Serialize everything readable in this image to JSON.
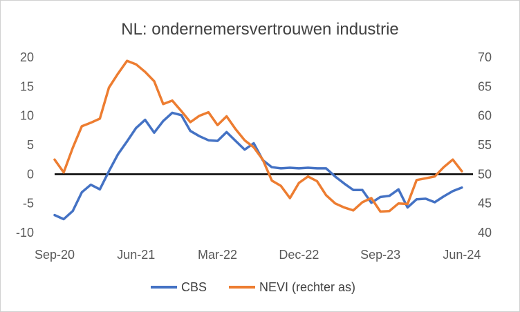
{
  "chart_data": {
    "type": "line",
    "title": "NL: ondernemersvertrouwen industrie",
    "x": [
      "Sep-20",
      "Oct-20",
      "Nov-20",
      "Dec-20",
      "Jan-21",
      "Feb-21",
      "Mar-21",
      "Apr-21",
      "May-21",
      "Jun-21",
      "Jul-21",
      "Aug-21",
      "Sep-21",
      "Oct-21",
      "Nov-21",
      "Dec-21",
      "Jan-22",
      "Feb-22",
      "Mar-22",
      "Apr-22",
      "May-22",
      "Jun-22",
      "Jul-22",
      "Aug-22",
      "Sep-22",
      "Oct-22",
      "Nov-22",
      "Dec-22",
      "Jan-23",
      "Feb-23",
      "Mar-23",
      "Apr-23",
      "May-23",
      "Jun-23",
      "Jul-23",
      "Aug-23",
      "Sep-23",
      "Oct-23",
      "Nov-23",
      "Dec-23",
      "Jan-24",
      "Feb-24",
      "Mar-24",
      "Apr-24",
      "May-24",
      "Jun-24",
      "Jul-24"
    ],
    "x_tick_labels": [
      "Sep-20",
      "Jun-21",
      "Mar-22",
      "Dec-22",
      "Sep-23",
      "Jun-24"
    ],
    "xlabel": "",
    "ylabel": "",
    "ylim": [
      -10,
      20
    ],
    "y_ticks": [
      "-10",
      "-5",
      "0",
      "5",
      "10",
      "15",
      "20"
    ],
    "y2lim": [
      40,
      70
    ],
    "y2_ticks": [
      "40",
      "45",
      "50",
      "55",
      "60",
      "65",
      "70"
    ],
    "zero_line": true,
    "legend_position": "bottom",
    "series": [
      {
        "name": "CBS",
        "axis": "left",
        "color": "#4472c4",
        "values": [
          -7,
          -7.7,
          -6.3,
          -3.1,
          -1.8,
          -2.6,
          0.5,
          3.4,
          5.6,
          7.9,
          9.3,
          7.1,
          9.1,
          10.5,
          10.1,
          7.4,
          6.5,
          5.8,
          5.7,
          7.2,
          5.7,
          4.2,
          5.3,
          2.4,
          1.2,
          1.0,
          1.1,
          1.0,
          1.1,
          1.0,
          1.0,
          -0.4,
          -1.6,
          -2.7,
          -2.7,
          -4.9,
          -3.9,
          -3.7,
          -2.6,
          -5.7,
          -4.3,
          -4.2,
          -4.8,
          -3.8,
          -2.9,
          -2.3,
          null
        ]
      },
      {
        "name": "NEVI (rechter as)",
        "axis": "right",
        "color": "#ed7d31",
        "values": [
          52.5,
          50.3,
          54.5,
          58.2,
          58.8,
          59.5,
          64.8,
          67.2,
          69.4,
          68.8,
          67.5,
          65.9,
          62.0,
          62.6,
          60.8,
          58.9,
          60.0,
          60.6,
          58.4,
          59.9,
          57.7,
          55.8,
          54.6,
          52.5,
          48.9,
          48.0,
          45.9,
          48.5,
          49.6,
          48.8,
          46.4,
          45.0,
          44.3,
          43.8,
          45.2,
          45.9,
          43.6,
          43.7,
          45.0,
          44.9,
          49.0,
          49.3,
          49.6,
          51.2,
          52.5,
          50.5,
          null
        ]
      }
    ]
  }
}
